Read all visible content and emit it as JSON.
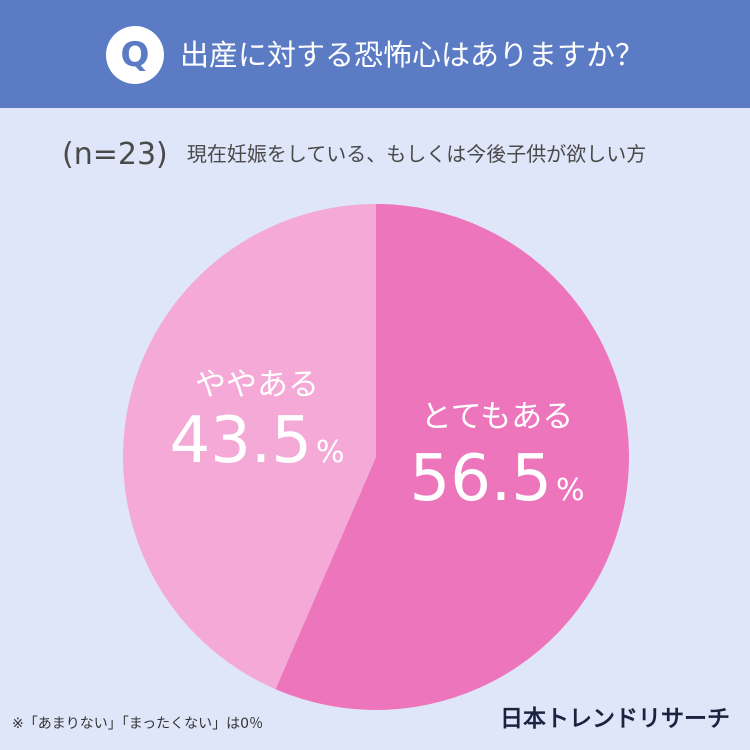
{
  "header": {
    "badge": "Q",
    "question": "出産に対する恐怖心はありますか？"
  },
  "subtitle": {
    "sample": "(n=23)",
    "description": "現在妊娠をしている、もしくは今後子供が欲しい方"
  },
  "chart_data": {
    "type": "pie",
    "unit": "%",
    "slices": [
      {
        "label": "とてもある",
        "value": 56.5,
        "color": "#ec75bb"
      },
      {
        "label": "ややある",
        "value": 43.5,
        "color": "#f4a9d6"
      }
    ]
  },
  "footnote": "※「あまりない」「まったくない」は0％",
  "brand": "日本トレンドリサーチ"
}
